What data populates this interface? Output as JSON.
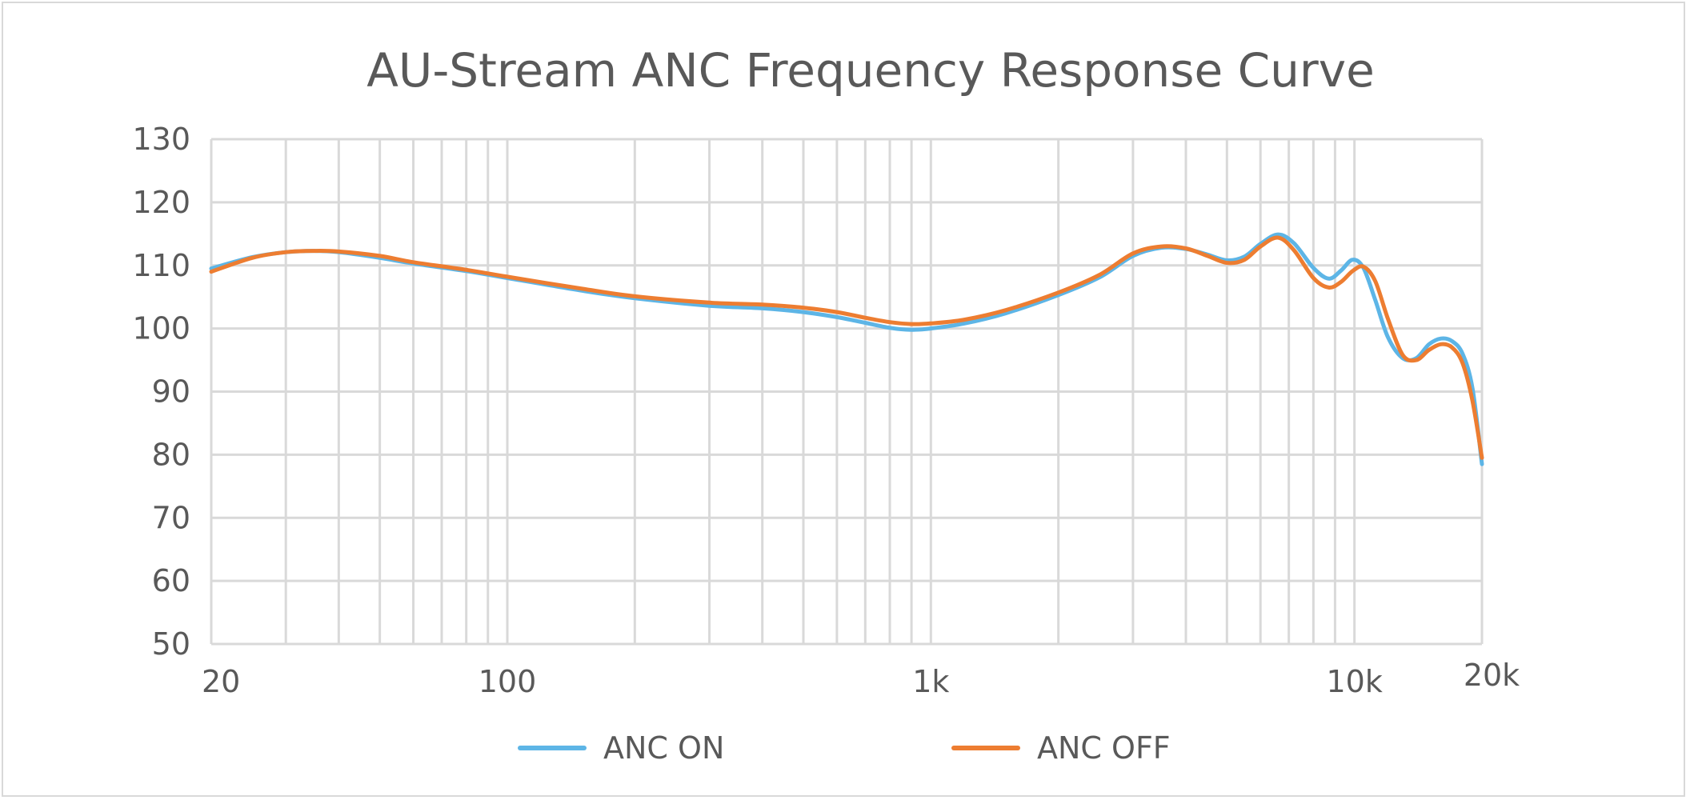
{
  "chart_data": {
    "type": "line",
    "title": "AU-Stream ANC Frequency Response Curve",
    "xlabel": "",
    "ylabel": "",
    "x_scale": "log",
    "xlim": [
      20,
      20000
    ],
    "ylim": [
      50,
      130
    ],
    "y_ticks": [
      "50",
      "60",
      "70",
      "80",
      "90",
      "100",
      "110",
      "120",
      "130"
    ],
    "x_tick_labels": [
      {
        "value": 20,
        "label": "20"
      },
      {
        "value": 100,
        "label": "100"
      },
      {
        "value": 1000,
        "label": "1k"
      },
      {
        "value": 10000,
        "label": "10k"
      },
      {
        "value": 20000,
        "label": "20k"
      }
    ],
    "grid": true,
    "legend_position": "bottom",
    "series": [
      {
        "name": "ANC ON",
        "color": "#5db5e6",
        "points": [
          [
            20,
            109.5
          ],
          [
            25,
            111.3
          ],
          [
            30,
            112.1
          ],
          [
            35,
            112.3
          ],
          [
            40,
            112.1
          ],
          [
            50,
            111.2
          ],
          [
            60,
            110.3
          ],
          [
            80,
            109.1
          ],
          [
            100,
            108.0
          ],
          [
            150,
            106.0
          ],
          [
            200,
            104.8
          ],
          [
            300,
            103.6
          ],
          [
            400,
            103.2
          ],
          [
            500,
            102.6
          ],
          [
            600,
            101.8
          ],
          [
            700,
            100.9
          ],
          [
            800,
            100.1
          ],
          [
            900,
            99.8
          ],
          [
            1000,
            100.0
          ],
          [
            1200,
            100.8
          ],
          [
            1500,
            102.4
          ],
          [
            2000,
            105.3
          ],
          [
            2500,
            108.1
          ],
          [
            3000,
            111.5
          ],
          [
            3500,
            112.8
          ],
          [
            4000,
            112.6
          ],
          [
            4500,
            111.7
          ],
          [
            5000,
            110.8
          ],
          [
            5500,
            111.4
          ],
          [
            6000,
            113.4
          ],
          [
            6600,
            114.9
          ],
          [
            7200,
            113.5
          ],
          [
            8000,
            109.6
          ],
          [
            8700,
            107.9
          ],
          [
            9300,
            109.2
          ],
          [
            9900,
            110.9
          ],
          [
            10500,
            109.6
          ],
          [
            11200,
            104.5
          ],
          [
            12000,
            98.6
          ],
          [
            13000,
            95.3
          ],
          [
            14000,
            95.3
          ],
          [
            15000,
            97.5
          ],
          [
            16000,
            98.4
          ],
          [
            17000,
            98.0
          ],
          [
            18000,
            96.0
          ],
          [
            19000,
            90.5
          ],
          [
            20000,
            78.5
          ]
        ]
      },
      {
        "name": "ANC OFF",
        "color": "#ed7d31",
        "points": [
          [
            20,
            109.0
          ],
          [
            25,
            111.2
          ],
          [
            30,
            112.1
          ],
          [
            35,
            112.3
          ],
          [
            40,
            112.2
          ],
          [
            50,
            111.5
          ],
          [
            60,
            110.5
          ],
          [
            80,
            109.3
          ],
          [
            100,
            108.2
          ],
          [
            150,
            106.3
          ],
          [
            200,
            105.1
          ],
          [
            300,
            104.1
          ],
          [
            400,
            103.8
          ],
          [
            500,
            103.3
          ],
          [
            600,
            102.6
          ],
          [
            700,
            101.7
          ],
          [
            800,
            101.0
          ],
          [
            900,
            100.7
          ],
          [
            1000,
            100.8
          ],
          [
            1200,
            101.4
          ],
          [
            1500,
            102.9
          ],
          [
            2000,
            105.7
          ],
          [
            2500,
            108.5
          ],
          [
            3000,
            111.9
          ],
          [
            3500,
            113.0
          ],
          [
            4000,
            112.7
          ],
          [
            4500,
            111.5
          ],
          [
            5000,
            110.4
          ],
          [
            5500,
            110.9
          ],
          [
            6000,
            113.0
          ],
          [
            6600,
            114.4
          ],
          [
            7200,
            112.4
          ],
          [
            8000,
            108.0
          ],
          [
            8700,
            106.5
          ],
          [
            9300,
            107.4
          ],
          [
            9900,
            109.1
          ],
          [
            10500,
            109.8
          ],
          [
            11200,
            107.5
          ],
          [
            12000,
            101.5
          ],
          [
            13000,
            95.8
          ],
          [
            14000,
            95.0
          ],
          [
            15000,
            96.6
          ],
          [
            16000,
            97.5
          ],
          [
            17000,
            97.0
          ],
          [
            18000,
            94.5
          ],
          [
            19000,
            88.5
          ],
          [
            20000,
            79.5
          ]
        ]
      }
    ]
  }
}
